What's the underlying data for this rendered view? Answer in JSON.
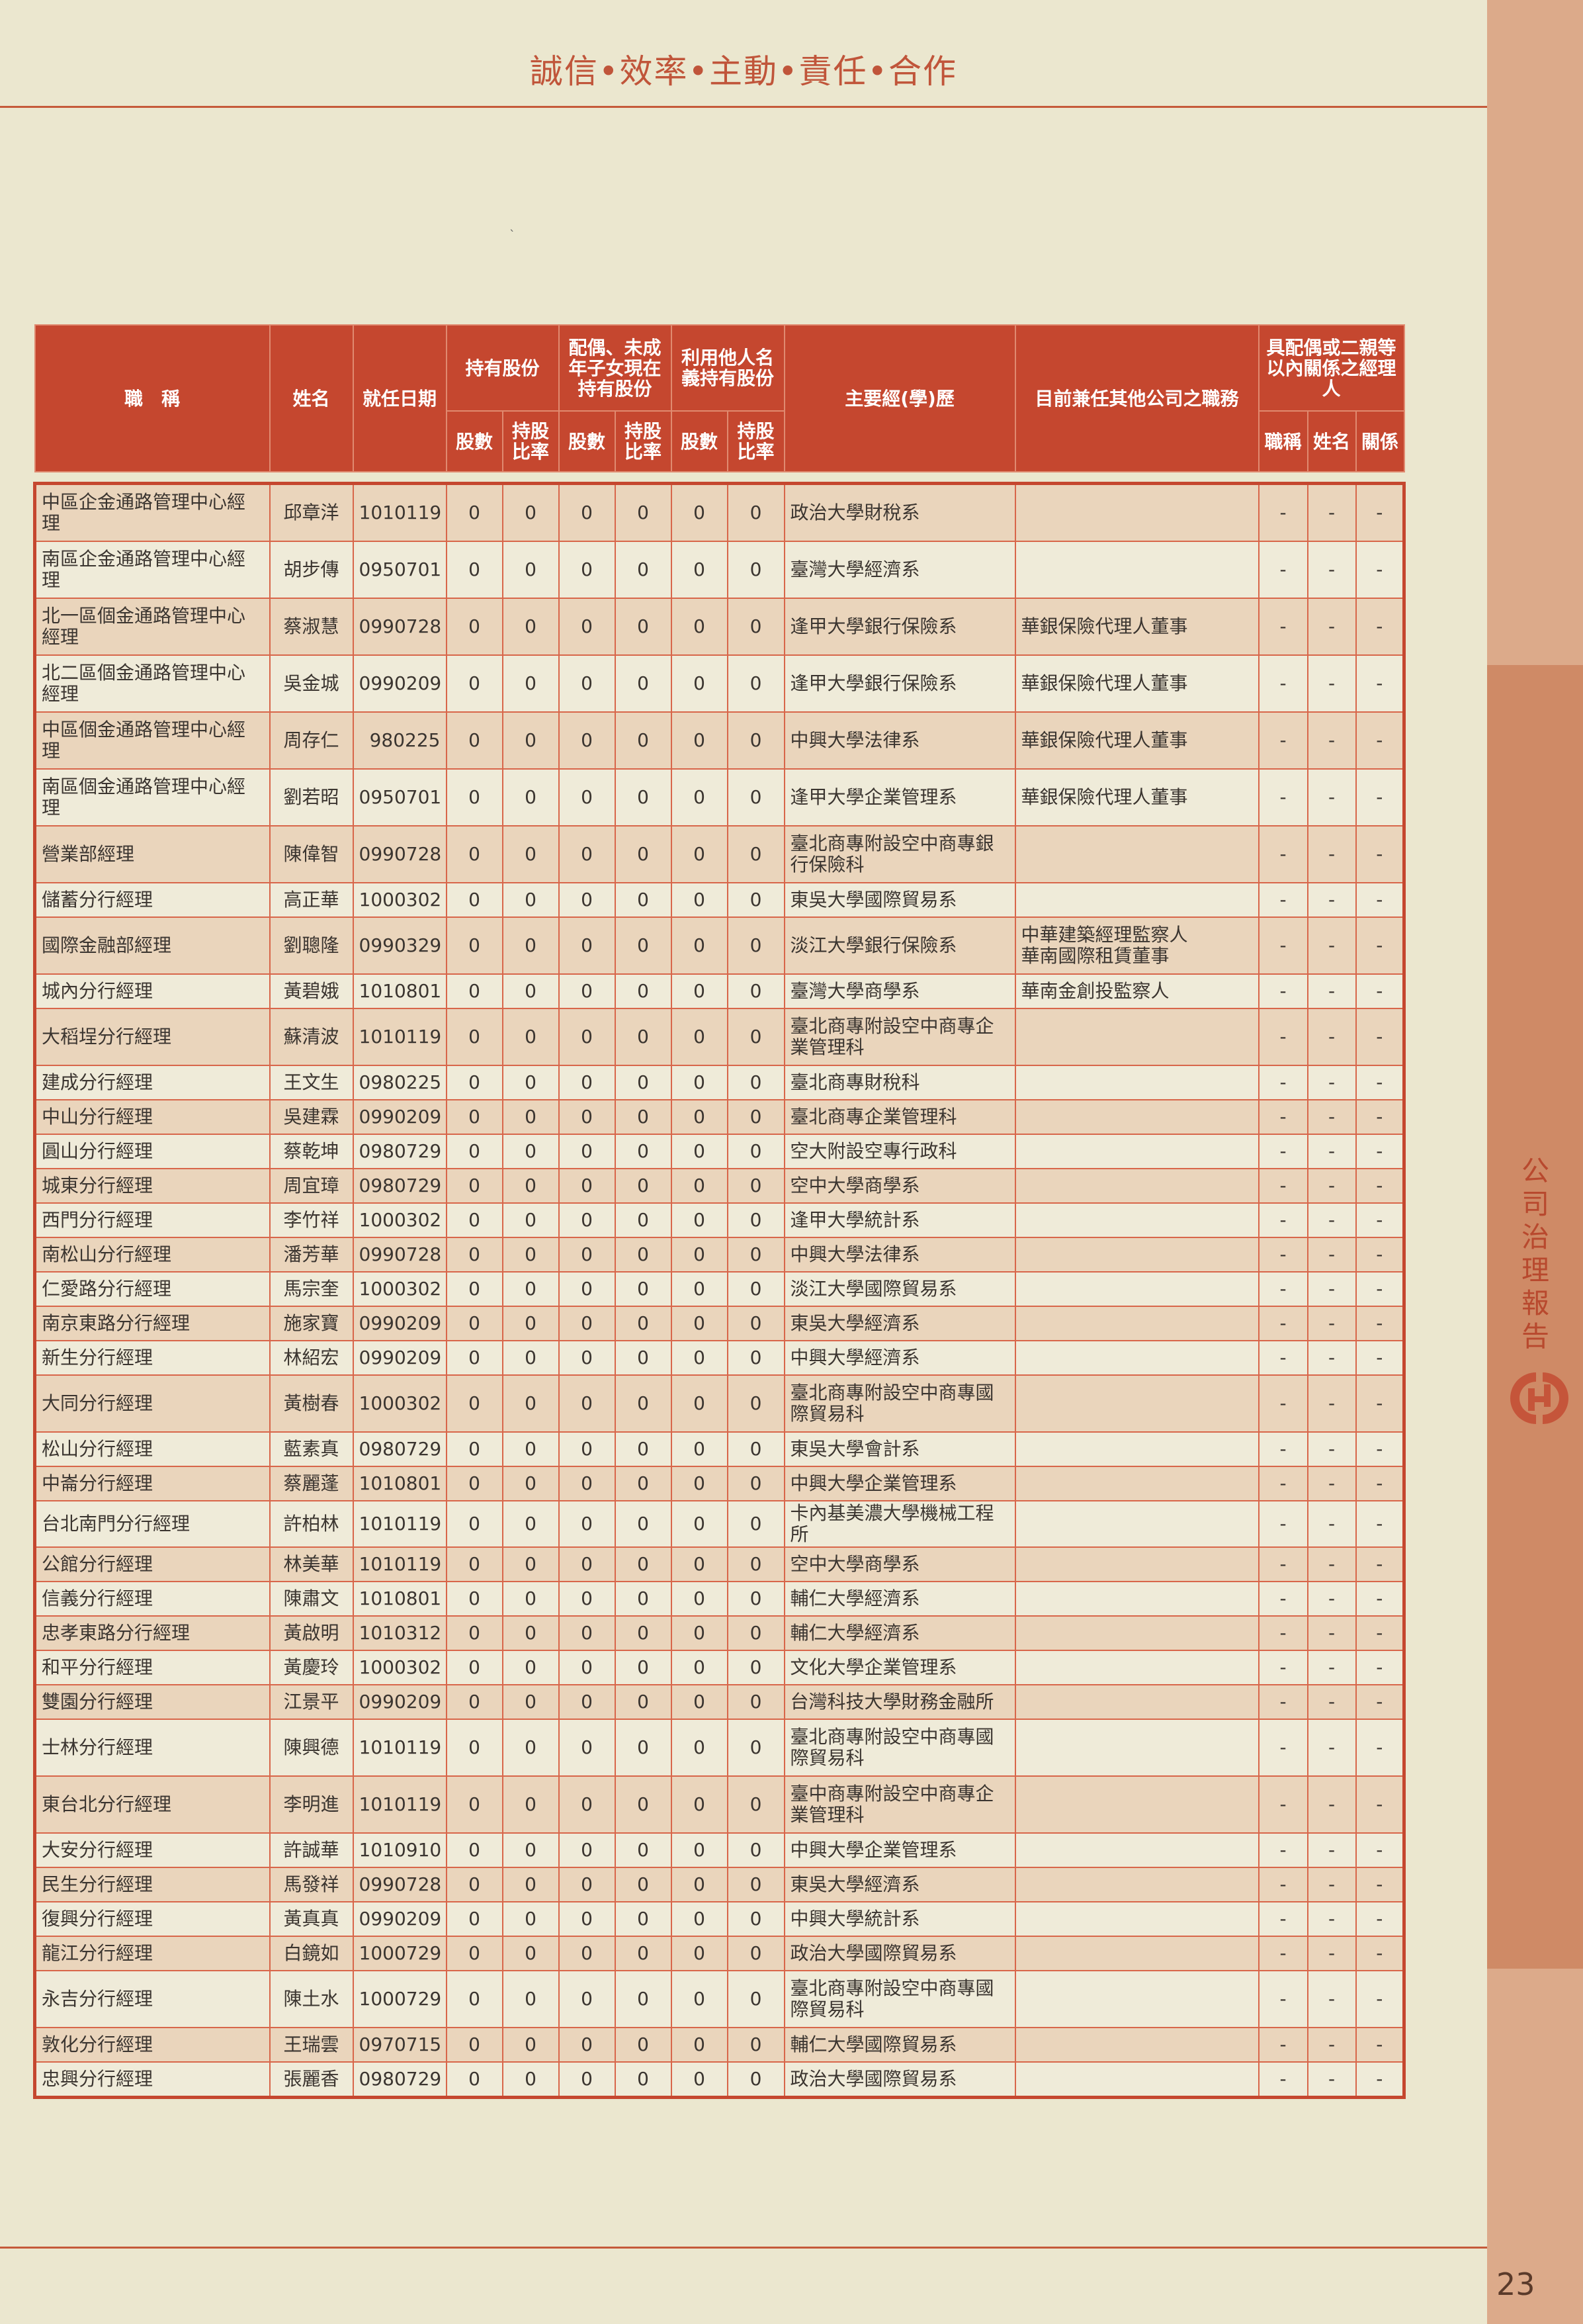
{
  "header": {
    "motto": "誠信•效率•主動•責任•合作"
  },
  "sidebar": {
    "section_title": "公司治理報告",
    "logo": "華南銀行 logo",
    "accent_color": "#cf8a66"
  },
  "page_number": "23",
  "table": {
    "headers": {
      "title": "職　稱",
      "name": "姓名",
      "date": "就任日期",
      "own_shares": "持有股份",
      "family_shares": "配偶、未成年子女現在持有股份",
      "nominee_shares": "利用他人名義持有股份",
      "shares_count": "股數",
      "shares_ratio": "持股比率",
      "education": "主要經(學)歷",
      "concurrent": "目前兼任其他公司之職務",
      "relatives": "具配偶或二親等以內關係之經理人",
      "rel_title": "職稱",
      "rel_name": "姓名",
      "rel_relation": "關係"
    },
    "header_color": "#c5472f",
    "rows": [
      {
        "title": "中區企金通路管理中心經理",
        "name": "邱章洋",
        "date": "1010119",
        "shares": [
          "0",
          "0",
          "0",
          "0",
          "0",
          "0"
        ],
        "education": "政治大學財稅系",
        "concurrent": "",
        "rel": [
          "-",
          "-",
          "-"
        ]
      },
      {
        "title": "南區企金通路管理中心經理",
        "name": "胡步傳",
        "date": "0950701",
        "shares": [
          "0",
          "0",
          "0",
          "0",
          "0",
          "0"
        ],
        "education": "臺灣大學經濟系",
        "concurrent": "",
        "rel": [
          "-",
          "-",
          "-"
        ]
      },
      {
        "title": "北一區個金通路管理中心經理",
        "name": "蔡淑慧",
        "date": "0990728",
        "shares": [
          "0",
          "0",
          "0",
          "0",
          "0",
          "0"
        ],
        "education": "逢甲大學銀行保險系",
        "concurrent": "華銀保險代理人董事",
        "rel": [
          "-",
          "-",
          "-"
        ]
      },
      {
        "title": "北二區個金通路管理中心經理",
        "name": "吳金城",
        "date": "0990209",
        "shares": [
          "0",
          "0",
          "0",
          "0",
          "0",
          "0"
        ],
        "education": "逢甲大學銀行保險系",
        "concurrent": "華銀保險代理人董事",
        "rel": [
          "-",
          "-",
          "-"
        ]
      },
      {
        "title": "中區個金通路管理中心經理",
        "name": "周存仁",
        "date": "980225",
        "shares": [
          "0",
          "0",
          "0",
          "0",
          "0",
          "0"
        ],
        "education": "中興大學法律系",
        "concurrent": "華銀保險代理人董事",
        "rel": [
          "-",
          "-",
          "-"
        ]
      },
      {
        "title": "南區個金通路管理中心經理",
        "name": "劉若昭",
        "date": "0950701",
        "shares": [
          "0",
          "0",
          "0",
          "0",
          "0",
          "0"
        ],
        "education": "逢甲大學企業管理系",
        "concurrent": "華銀保險代理人董事",
        "rel": [
          "-",
          "-",
          "-"
        ]
      },
      {
        "title": "營業部經理",
        "name": "陳偉智",
        "date": "0990728",
        "shares": [
          "0",
          "0",
          "0",
          "0",
          "0",
          "0"
        ],
        "education": "臺北商專附設空中商專銀行保險科",
        "concurrent": "",
        "rel": [
          "-",
          "-",
          "-"
        ]
      },
      {
        "title": "儲蓄分行經理",
        "name": "高正華",
        "date": "1000302",
        "shares": [
          "0",
          "0",
          "0",
          "0",
          "0",
          "0"
        ],
        "education": "東吳大學國際貿易系",
        "concurrent": "",
        "rel": [
          "-",
          "-",
          "-"
        ]
      },
      {
        "title": "國際金融部經理",
        "name": "劉聰隆",
        "date": "0990329",
        "shares": [
          "0",
          "0",
          "0",
          "0",
          "0",
          "0"
        ],
        "education": "淡江大學銀行保險系",
        "concurrent": "中華建築經理監察人\n華南國際租賃董事",
        "rel": [
          "-",
          "-",
          "-"
        ]
      },
      {
        "title": "城內分行經理",
        "name": "黃碧娥",
        "date": "1010801",
        "shares": [
          "0",
          "0",
          "0",
          "0",
          "0",
          "0"
        ],
        "education": "臺灣大學商學系",
        "concurrent": "華南金創投監察人",
        "rel": [
          "-",
          "-",
          "-"
        ]
      },
      {
        "title": "大稻埕分行經理",
        "name": "蘇清波",
        "date": "1010119",
        "shares": [
          "0",
          "0",
          "0",
          "0",
          "0",
          "0"
        ],
        "education": "臺北商專附設空中商專企業管理科",
        "concurrent": "",
        "rel": [
          "-",
          "-",
          "-"
        ]
      },
      {
        "title": "建成分行經理",
        "name": "王文生",
        "date": "0980225",
        "shares": [
          "0",
          "0",
          "0",
          "0",
          "0",
          "0"
        ],
        "education": "臺北商專財稅科",
        "concurrent": "",
        "rel": [
          "-",
          "-",
          "-"
        ]
      },
      {
        "title": "中山分行經理",
        "name": "吳建霖",
        "date": "0990209",
        "shares": [
          "0",
          "0",
          "0",
          "0",
          "0",
          "0"
        ],
        "education": "臺北商專企業管理科",
        "concurrent": "",
        "rel": [
          "-",
          "-",
          "-"
        ]
      },
      {
        "title": "圓山分行經理",
        "name": "蔡乾坤",
        "date": "0980729",
        "shares": [
          "0",
          "0",
          "0",
          "0",
          "0",
          "0"
        ],
        "education": "空大附設空專行政科",
        "concurrent": "",
        "rel": [
          "-",
          "-",
          "-"
        ]
      },
      {
        "title": "城東分行經理",
        "name": "周宜璋",
        "date": "0980729",
        "shares": [
          "0",
          "0",
          "0",
          "0",
          "0",
          "0"
        ],
        "education": "空中大學商學系",
        "concurrent": "",
        "rel": [
          "-",
          "-",
          "-"
        ]
      },
      {
        "title": "西門分行經理",
        "name": "李竹祥",
        "date": "1000302",
        "shares": [
          "0",
          "0",
          "0",
          "0",
          "0",
          "0"
        ],
        "education": "逢甲大學統計系",
        "concurrent": "",
        "rel": [
          "-",
          "-",
          "-"
        ]
      },
      {
        "title": "南松山分行經理",
        "name": "潘芳華",
        "date": "0990728",
        "shares": [
          "0",
          "0",
          "0",
          "0",
          "0",
          "0"
        ],
        "education": "中興大學法律系",
        "concurrent": "",
        "rel": [
          "-",
          "-",
          "-"
        ]
      },
      {
        "title": "仁愛路分行經理",
        "name": "馬宗奎",
        "date": "1000302",
        "shares": [
          "0",
          "0",
          "0",
          "0",
          "0",
          "0"
        ],
        "education": "淡江大學國際貿易系",
        "concurrent": "",
        "rel": [
          "-",
          "-",
          "-"
        ]
      },
      {
        "title": "南京東路分行經理",
        "name": "施家寶",
        "date": "0990209",
        "shares": [
          "0",
          "0",
          "0",
          "0",
          "0",
          "0"
        ],
        "education": "東吳大學經濟系",
        "concurrent": "",
        "rel": [
          "-",
          "-",
          "-"
        ]
      },
      {
        "title": "新生分行經理",
        "name": "林紹宏",
        "date": "0990209",
        "shares": [
          "0",
          "0",
          "0",
          "0",
          "0",
          "0"
        ],
        "education": "中興大學經濟系",
        "concurrent": "",
        "rel": [
          "-",
          "-",
          "-"
        ]
      },
      {
        "title": "大同分行經理",
        "name": "黃樹春",
        "date": "1000302",
        "shares": [
          "0",
          "0",
          "0",
          "0",
          "0",
          "0"
        ],
        "education": "臺北商專附設空中商專國際貿易科",
        "concurrent": "",
        "rel": [
          "-",
          "-",
          "-"
        ]
      },
      {
        "title": "松山分行經理",
        "name": "藍素真",
        "date": "0980729",
        "shares": [
          "0",
          "0",
          "0",
          "0",
          "0",
          "0"
        ],
        "education": "東吳大學會計系",
        "concurrent": "",
        "rel": [
          "-",
          "-",
          "-"
        ]
      },
      {
        "title": "中崙分行經理",
        "name": "蔡麗蓬",
        "date": "1010801",
        "shares": [
          "0",
          "0",
          "0",
          "0",
          "0",
          "0"
        ],
        "education": "中興大學企業管理系",
        "concurrent": "",
        "rel": [
          "-",
          "-",
          "-"
        ]
      },
      {
        "title": "台北南門分行經理",
        "name": "許柏林",
        "date": "1010119",
        "shares": [
          "0",
          "0",
          "0",
          "0",
          "0",
          "0"
        ],
        "education": "卡內基美濃大學機械工程所",
        "concurrent": "",
        "rel": [
          "-",
          "-",
          "-"
        ]
      },
      {
        "title": "公館分行經理",
        "name": "林美華",
        "date": "1010119",
        "shares": [
          "0",
          "0",
          "0",
          "0",
          "0",
          "0"
        ],
        "education": "空中大學商學系",
        "concurrent": "",
        "rel": [
          "-",
          "-",
          "-"
        ]
      },
      {
        "title": "信義分行經理",
        "name": "陳肅文",
        "date": "1010801",
        "shares": [
          "0",
          "0",
          "0",
          "0",
          "0",
          "0"
        ],
        "education": "輔仁大學經濟系",
        "concurrent": "",
        "rel": [
          "-",
          "-",
          "-"
        ]
      },
      {
        "title": "忠孝東路分行經理",
        "name": "黃啟明",
        "date": "1010312",
        "shares": [
          "0",
          "0",
          "0",
          "0",
          "0",
          "0"
        ],
        "education": "輔仁大學經濟系",
        "concurrent": "",
        "rel": [
          "-",
          "-",
          "-"
        ]
      },
      {
        "title": "和平分行經理",
        "name": "黃慶玲",
        "date": "1000302",
        "shares": [
          "0",
          "0",
          "0",
          "0",
          "0",
          "0"
        ],
        "education": "文化大學企業管理系",
        "concurrent": "",
        "rel": [
          "-",
          "-",
          "-"
        ]
      },
      {
        "title": "雙園分行經理",
        "name": "江景平",
        "date": "0990209",
        "shares": [
          "0",
          "0",
          "0",
          "0",
          "0",
          "0"
        ],
        "education": "台灣科技大學財務金融所",
        "concurrent": "",
        "rel": [
          "-",
          "-",
          "-"
        ]
      },
      {
        "title": "士林分行經理",
        "name": "陳興德",
        "date": "1010119",
        "shares": [
          "0",
          "0",
          "0",
          "0",
          "0",
          "0"
        ],
        "education": "臺北商專附設空中商專國際貿易科",
        "concurrent": "",
        "rel": [
          "-",
          "-",
          "-"
        ]
      },
      {
        "title": "東台北分行經理",
        "name": "李明進",
        "date": "1010119",
        "shares": [
          "0",
          "0",
          "0",
          "0",
          "0",
          "0"
        ],
        "education": "臺中商專附設空中商專企業管理科",
        "concurrent": "",
        "rel": [
          "-",
          "-",
          "-"
        ]
      },
      {
        "title": "大安分行經理",
        "name": "許誠華",
        "date": "1010910",
        "shares": [
          "0",
          "0",
          "0",
          "0",
          "0",
          "0"
        ],
        "education": "中興大學企業管理系",
        "concurrent": "",
        "rel": [
          "-",
          "-",
          "-"
        ]
      },
      {
        "title": "民生分行經理",
        "name": "馬發祥",
        "date": "0990728",
        "shares": [
          "0",
          "0",
          "0",
          "0",
          "0",
          "0"
        ],
        "education": "東吳大學經濟系",
        "concurrent": "",
        "rel": [
          "-",
          "-",
          "-"
        ]
      },
      {
        "title": "復興分行經理",
        "name": "黃真真",
        "date": "0990209",
        "shares": [
          "0",
          "0",
          "0",
          "0",
          "0",
          "0"
        ],
        "education": "中興大學統計系",
        "concurrent": "",
        "rel": [
          "-",
          "-",
          "-"
        ]
      },
      {
        "title": "龍江分行經理",
        "name": "白鏡如",
        "date": "1000729",
        "shares": [
          "0",
          "0",
          "0",
          "0",
          "0",
          "0"
        ],
        "education": "政治大學國際貿易系",
        "concurrent": "",
        "rel": [
          "-",
          "-",
          "-"
        ]
      },
      {
        "title": "永吉分行經理",
        "name": "陳土水",
        "date": "1000729",
        "shares": [
          "0",
          "0",
          "0",
          "0",
          "0",
          "0"
        ],
        "education": "臺北商專附設空中商專國際貿易科",
        "concurrent": "",
        "rel": [
          "-",
          "-",
          "-"
        ]
      },
      {
        "title": "敦化分行經理",
        "name": "王瑞雲",
        "date": "0970715",
        "shares": [
          "0",
          "0",
          "0",
          "0",
          "0",
          "0"
        ],
        "education": "輔仁大學國際貿易系",
        "concurrent": "",
        "rel": [
          "-",
          "-",
          "-"
        ]
      },
      {
        "title": "忠興分行經理",
        "name": "張麗香",
        "date": "0980729",
        "shares": [
          "0",
          "0",
          "0",
          "0",
          "0",
          "0"
        ],
        "education": "政治大學國際貿易系",
        "concurrent": "",
        "rel": [
          "-",
          "-",
          "-"
        ]
      }
    ]
  }
}
